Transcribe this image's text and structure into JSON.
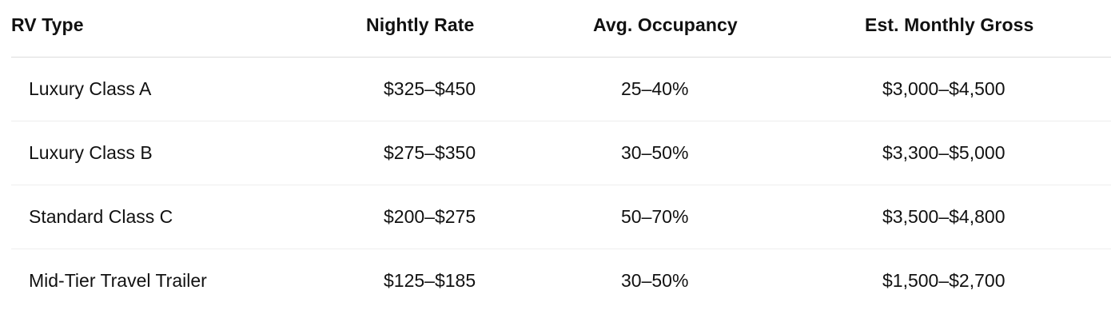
{
  "table": {
    "headers": {
      "rv_type": "RV Type",
      "nightly_rate": "Nightly Rate",
      "avg_occupancy": "Avg. Occupancy",
      "est_monthly_gross": "Est. Monthly Gross"
    },
    "rows": [
      {
        "rv_type": "Luxury Class A",
        "nightly_rate": "$325–$450",
        "avg_occupancy": "25–40%",
        "est_monthly_gross": "$3,000–$4,500"
      },
      {
        "rv_type": "Luxury Class B",
        "nightly_rate": "$275–$350",
        "avg_occupancy": "30–50%",
        "est_monthly_gross": "$3,300–$5,000"
      },
      {
        "rv_type": "Standard Class C",
        "nightly_rate": "$200–$275",
        "avg_occupancy": "50–70%",
        "est_monthly_gross": "$3,500–$4,800"
      },
      {
        "rv_type": "Mid-Tier Travel Trailer",
        "nightly_rate": "$125–$185",
        "avg_occupancy": "30–50%",
        "est_monthly_gross": "$1,500–$2,700"
      }
    ]
  }
}
